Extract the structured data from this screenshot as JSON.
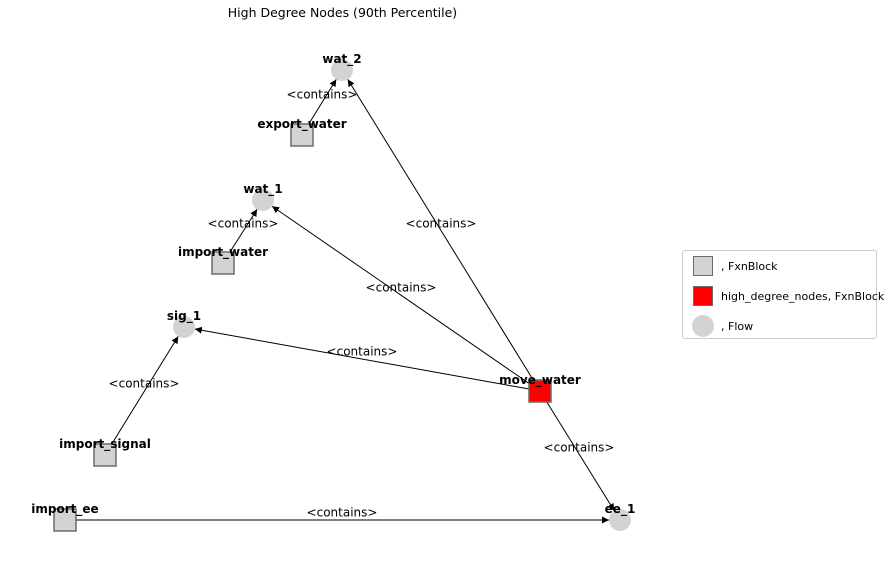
{
  "title": "High Degree Nodes (90th Percentile)",
  "colors": {
    "fxnblock": "#d3d3d3",
    "fxnblock_border": "#6b6b6b",
    "high_degree": "#ff0000",
    "flow": "#d3d3d3",
    "edge": "#000000"
  },
  "nodes": [
    {
      "id": "wat_2",
      "label": "wat_2",
      "kind": "flow"
    },
    {
      "id": "export_water",
      "label": "export_water",
      "kind": "fxnblock"
    },
    {
      "id": "wat_1",
      "label": "wat_1",
      "kind": "flow"
    },
    {
      "id": "import_water",
      "label": "import_water",
      "kind": "fxnblock"
    },
    {
      "id": "sig_1",
      "label": "sig_1",
      "kind": "flow"
    },
    {
      "id": "move_water",
      "label": "move_water",
      "kind": "high_degree"
    },
    {
      "id": "import_signal",
      "label": "import_signal",
      "kind": "fxnblock"
    },
    {
      "id": "import_ee",
      "label": "import_ee",
      "kind": "fxnblock"
    },
    {
      "id": "ee_1",
      "label": "ee_1",
      "kind": "flow"
    }
  ],
  "edges": [
    {
      "source": "export_water",
      "target": "wat_2",
      "label": "<contains>"
    },
    {
      "source": "import_water",
      "target": "wat_1",
      "label": "<contains>"
    },
    {
      "source": "import_signal",
      "target": "sig_1",
      "label": "<contains>"
    },
    {
      "source": "import_ee",
      "target": "ee_1",
      "label": "<contains>"
    },
    {
      "source": "move_water",
      "target": "wat_2",
      "label": "<contains>"
    },
    {
      "source": "move_water",
      "target": "wat_1",
      "label": "<contains>"
    },
    {
      "source": "move_water",
      "target": "sig_1",
      "label": "<contains>"
    },
    {
      "source": "move_water",
      "target": "ee_1",
      "label": "<contains>"
    }
  ],
  "legend": [
    {
      "kind": "fxnblock",
      "label": ", FxnBlock"
    },
    {
      "kind": "high_degree",
      "label": "high_degree_nodes, FxnBlock"
    },
    {
      "kind": "flow",
      "label": ", Flow"
    }
  ]
}
